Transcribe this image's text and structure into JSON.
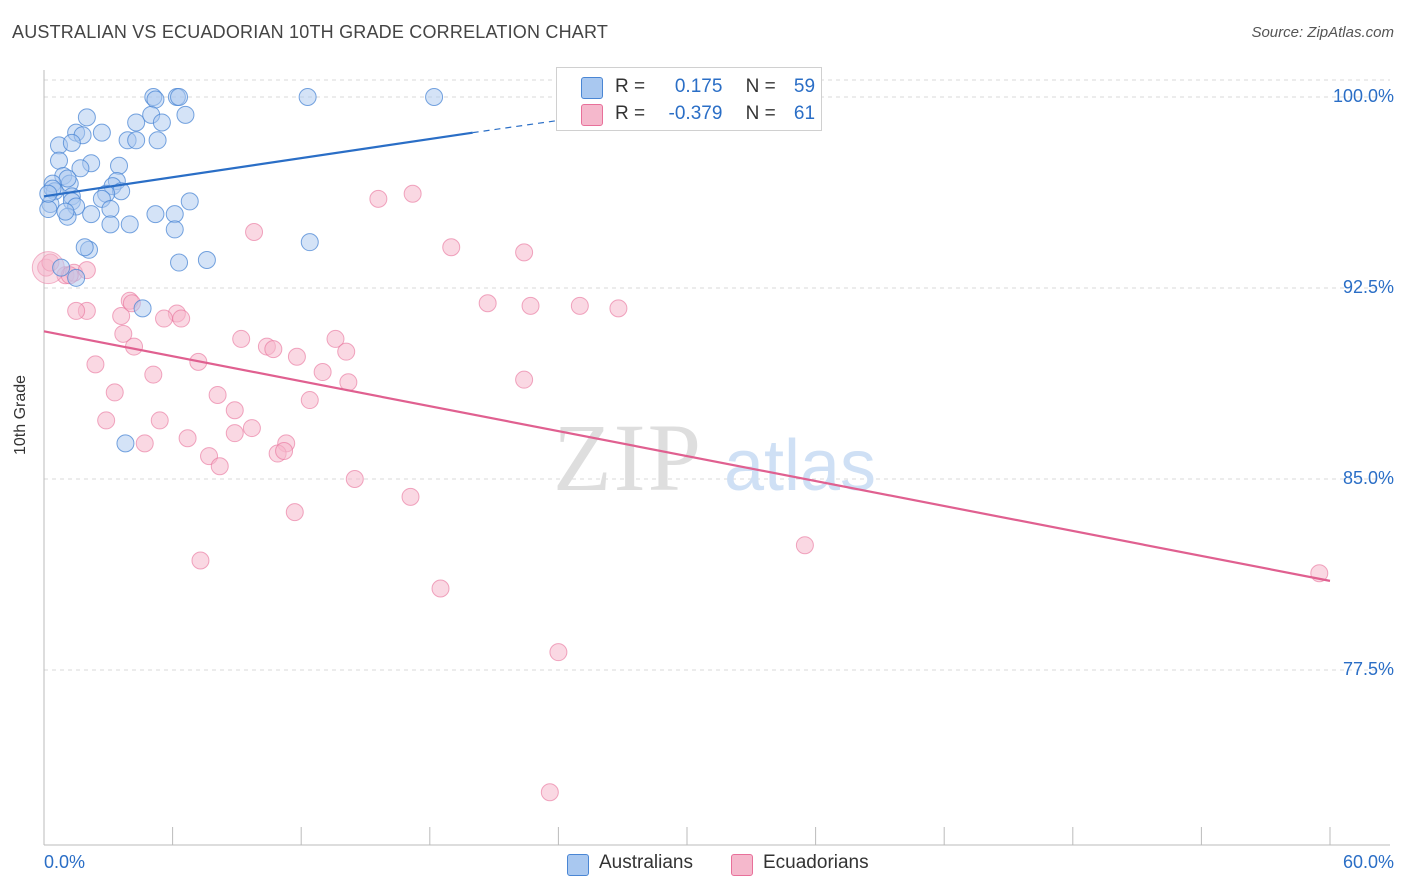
{
  "header": {
    "title": "AUSTRALIAN VS ECUADORIAN 10TH GRADE CORRELATION CHART",
    "source": "Source: ZipAtlas.com"
  },
  "colors": {
    "australians": "#4a86d4",
    "australians_fill": "#a9c8f0",
    "ecuadorians": "#e8709a",
    "ecuadorians_fill": "#f5b8cc",
    "axis_text": "#2a6ec6",
    "grid": "#d8d8d8"
  },
  "legend": {
    "rows": [
      {
        "r_label": "R =",
        "r_value": "0.175",
        "n_label": "N =",
        "n_value": "59"
      },
      {
        "r_label": "R =",
        "r_value": "-0.379",
        "n_label": "N =",
        "n_value": "61"
      }
    ]
  },
  "bottom_legend": {
    "australians": "Australians",
    "ecuadorians": "Ecuadorians"
  },
  "watermark": {
    "zip": "ZIP",
    "atlas": "atlas"
  },
  "chart_data": {
    "type": "scatter",
    "title": "AUSTRALIAN VS ECUADORIAN 10TH GRADE CORRELATION CHART",
    "xlabel": "",
    "ylabel": "10th Grade",
    "xlim": [
      0,
      60
    ],
    "ylim": [
      71.5,
      101.5
    ],
    "x_tick_labels": [
      "0.0%",
      "60.0%"
    ],
    "y_ticks": [
      77.5,
      85.0,
      92.5,
      100.0
    ],
    "y_tick_labels": [
      "77.5%",
      "85.0%",
      "92.5%",
      "100.0%"
    ],
    "grid": true,
    "series": [
      {
        "name": "Australians",
        "r": 0.175,
        "n": 59,
        "trend": {
          "x0": 0,
          "y0": 96.1,
          "x1": 20,
          "y1": 98.6,
          "dash_x1": 25,
          "dash_y1": 99.2
        },
        "points": [
          [
            4.3,
            99.0
          ],
          [
            5.1,
            100.0
          ],
          [
            6.2,
            100.0
          ],
          [
            6.3,
            100.0
          ],
          [
            12.3,
            100.0
          ],
          [
            18.2,
            100.0
          ],
          [
            5.2,
            99.9
          ],
          [
            2.0,
            99.2
          ],
          [
            5.0,
            99.3
          ],
          [
            5.5,
            99.0
          ],
          [
            6.6,
            99.3
          ],
          [
            1.5,
            98.6
          ],
          [
            2.7,
            98.6
          ],
          [
            1.8,
            98.5
          ],
          [
            3.9,
            98.3
          ],
          [
            4.3,
            98.3
          ],
          [
            5.3,
            98.3
          ],
          [
            0.7,
            98.1
          ],
          [
            1.3,
            98.2
          ],
          [
            0.7,
            97.5
          ],
          [
            2.2,
            97.4
          ],
          [
            3.5,
            97.3
          ],
          [
            1.7,
            97.2
          ],
          [
            0.9,
            96.9
          ],
          [
            1.2,
            96.6
          ],
          [
            1.1,
            96.8
          ],
          [
            3.4,
            96.7
          ],
          [
            0.4,
            96.6
          ],
          [
            0.5,
            96.3
          ],
          [
            3.2,
            96.5
          ],
          [
            3.6,
            96.3
          ],
          [
            2.9,
            96.2
          ],
          [
            0.4,
            96.4
          ],
          [
            2.7,
            96.0
          ],
          [
            1.3,
            96.1
          ],
          [
            0.3,
            95.8
          ],
          [
            1.3,
            95.9
          ],
          [
            1.5,
            95.7
          ],
          [
            6.8,
            95.9
          ],
          [
            3.1,
            95.6
          ],
          [
            0.2,
            95.6
          ],
          [
            2.2,
            95.4
          ],
          [
            1.1,
            95.3
          ],
          [
            1.0,
            95.5
          ],
          [
            5.2,
            95.4
          ],
          [
            6.1,
            95.4
          ],
          [
            3.1,
            95.0
          ],
          [
            4.0,
            95.0
          ],
          [
            6.1,
            94.8
          ],
          [
            12.4,
            94.3
          ],
          [
            2.1,
            94.0
          ],
          [
            1.9,
            94.1
          ],
          [
            7.6,
            93.6
          ],
          [
            6.3,
            93.5
          ],
          [
            0.8,
            93.3
          ],
          [
            1.5,
            92.9
          ],
          [
            4.6,
            91.7
          ],
          [
            3.8,
            86.4
          ],
          [
            0.2,
            96.2
          ]
        ]
      },
      {
        "name": "Ecuadorians",
        "r": -0.379,
        "n": 61,
        "trend": {
          "x0": 0,
          "y0": 90.8,
          "x1": 60,
          "y1": 81.0
        },
        "points": [
          [
            0.1,
            93.3
          ],
          [
            0.3,
            93.5
          ],
          [
            1.0,
            93.0
          ],
          [
            1.4,
            93.1
          ],
          [
            1.2,
            93.0
          ],
          [
            15.6,
            96.0
          ],
          [
            17.2,
            96.2
          ],
          [
            9.8,
            94.7
          ],
          [
            19.0,
            94.1
          ],
          [
            22.4,
            93.9
          ],
          [
            2.0,
            91.6
          ],
          [
            3.6,
            91.4
          ],
          [
            4.0,
            92.0
          ],
          [
            4.1,
            91.9
          ],
          [
            20.7,
            91.9
          ],
          [
            22.7,
            91.8
          ],
          [
            25.0,
            91.8
          ],
          [
            26.8,
            91.7
          ],
          [
            1.5,
            91.6
          ],
          [
            6.2,
            91.5
          ],
          [
            6.4,
            91.3
          ],
          [
            5.6,
            91.3
          ],
          [
            3.7,
            90.7
          ],
          [
            9.2,
            90.5
          ],
          [
            13.6,
            90.5
          ],
          [
            10.4,
            90.2
          ],
          [
            4.2,
            90.2
          ],
          [
            10.7,
            90.1
          ],
          [
            14.1,
            90.0
          ],
          [
            11.8,
            89.8
          ],
          [
            7.2,
            89.6
          ],
          [
            2.4,
            89.5
          ],
          [
            5.1,
            89.1
          ],
          [
            13.0,
            89.2
          ],
          [
            14.2,
            88.8
          ],
          [
            22.4,
            88.9
          ],
          [
            3.3,
            88.4
          ],
          [
            8.1,
            88.3
          ],
          [
            12.4,
            88.1
          ],
          [
            8.9,
            87.7
          ],
          [
            5.4,
            87.3
          ],
          [
            2.9,
            87.3
          ],
          [
            8.9,
            86.8
          ],
          [
            6.7,
            86.6
          ],
          [
            4.7,
            86.4
          ],
          [
            11.3,
            86.4
          ],
          [
            10.9,
            86.0
          ],
          [
            11.2,
            86.1
          ],
          [
            7.7,
            85.9
          ],
          [
            8.2,
            85.5
          ],
          [
            14.5,
            85.0
          ],
          [
            17.1,
            84.3
          ],
          [
            11.7,
            83.7
          ],
          [
            35.5,
            82.4
          ],
          [
            7.3,
            81.8
          ],
          [
            59.5,
            81.3
          ],
          [
            18.5,
            80.7
          ],
          [
            24.0,
            78.2
          ],
          [
            23.6,
            72.7
          ],
          [
            9.7,
            87.0
          ],
          [
            2.0,
            93.2
          ]
        ]
      }
    ]
  }
}
